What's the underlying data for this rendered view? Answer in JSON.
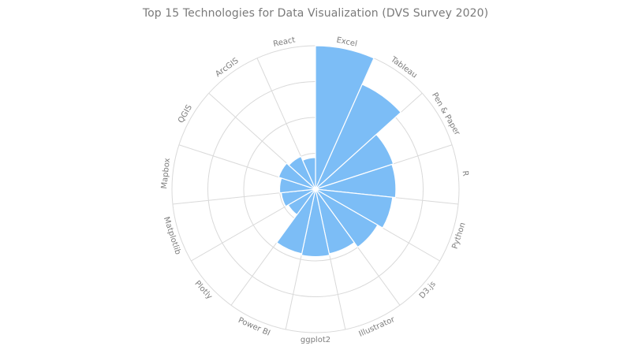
{
  "chart_data": {
    "type": "polar-bar",
    "title": "Top 15 Technologies for Data Visualization (DVS Survey 2020)",
    "categories": [
      "Excel",
      "Tableau",
      "Pen & Paper",
      "R",
      "Python",
      "D3.js",
      "Illustrator",
      "ggplot2",
      "Power BI",
      "Plotly",
      "Matplotlib",
      "Mapbox",
      "QGIS",
      "ArcGIS",
      "React"
    ],
    "values": [
      1.0,
      0.8,
      0.57,
      0.56,
      0.54,
      0.5,
      0.46,
      0.47,
      0.46,
      0.22,
      0.24,
      0.25,
      0.27,
      0.25,
      0.22
    ],
    "radial_range": [
      0,
      1
    ],
    "grid": true,
    "legend": "none",
    "colors": {
      "bar_fill": "#7cbdf6",
      "bar_stroke": "#5aabee",
      "grid": "#d9d9d9",
      "label": "#7d7d7d",
      "title": "#7a7a7a"
    }
  }
}
